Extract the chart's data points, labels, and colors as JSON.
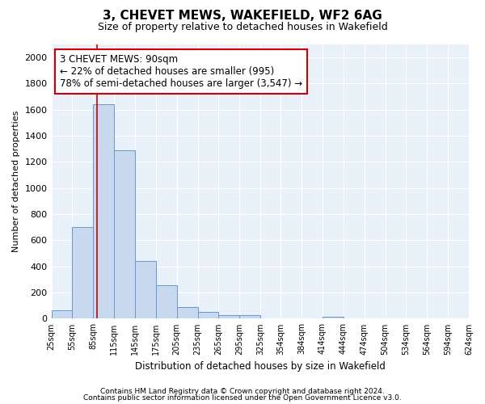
{
  "title": "3, CHEVET MEWS, WAKEFIELD, WF2 6AG",
  "subtitle": "Size of property relative to detached houses in Wakefield",
  "xlabel": "Distribution of detached houses by size in Wakefield",
  "ylabel": "Number of detached properties",
  "bin_labels": [
    "25sqm",
    "55sqm",
    "85sqm",
    "115sqm",
    "145sqm",
    "175sqm",
    "205sqm",
    "235sqm",
    "265sqm",
    "295sqm",
    "325sqm",
    "354sqm",
    "384sqm",
    "414sqm",
    "444sqm",
    "474sqm",
    "504sqm",
    "534sqm",
    "564sqm",
    "594sqm",
    "624sqm"
  ],
  "bin_lefts": [
    25,
    55,
    85,
    115,
    145,
    175,
    205,
    235,
    265,
    295,
    325,
    354,
    384,
    414,
    444,
    474,
    504,
    534,
    564,
    594
  ],
  "bin_widths": [
    30,
    30,
    30,
    30,
    30,
    30,
    30,
    30,
    30,
    30,
    29,
    30,
    30,
    30,
    30,
    30,
    30,
    30,
    30,
    30
  ],
  "bar_heights": [
    65,
    700,
    1640,
    1290,
    440,
    255,
    90,
    50,
    25,
    25,
    0,
    0,
    0,
    15,
    0,
    0,
    0,
    0,
    0,
    0
  ],
  "bar_color": "#c8d8ee",
  "bar_edge_color": "#6699cc",
  "red_line_x": 90,
  "ylim": [
    0,
    2100
  ],
  "yticks": [
    0,
    200,
    400,
    600,
    800,
    1000,
    1200,
    1400,
    1600,
    1800,
    2000
  ],
  "annotation_text": "3 CHEVET MEWS: 90sqm\n← 22% of detached houses are smaller (995)\n78% of semi-detached houses are larger (3,547) →",
  "annotation_box_color": "#ffffff",
  "annotation_box_edge": "#cc0000",
  "footer1": "Contains HM Land Registry data © Crown copyright and database right 2024.",
  "footer2": "Contains public sector information licensed under the Open Government Licence v3.0.",
  "bg_color": "#ffffff",
  "plot_bg_color": "#e8f0fa"
}
